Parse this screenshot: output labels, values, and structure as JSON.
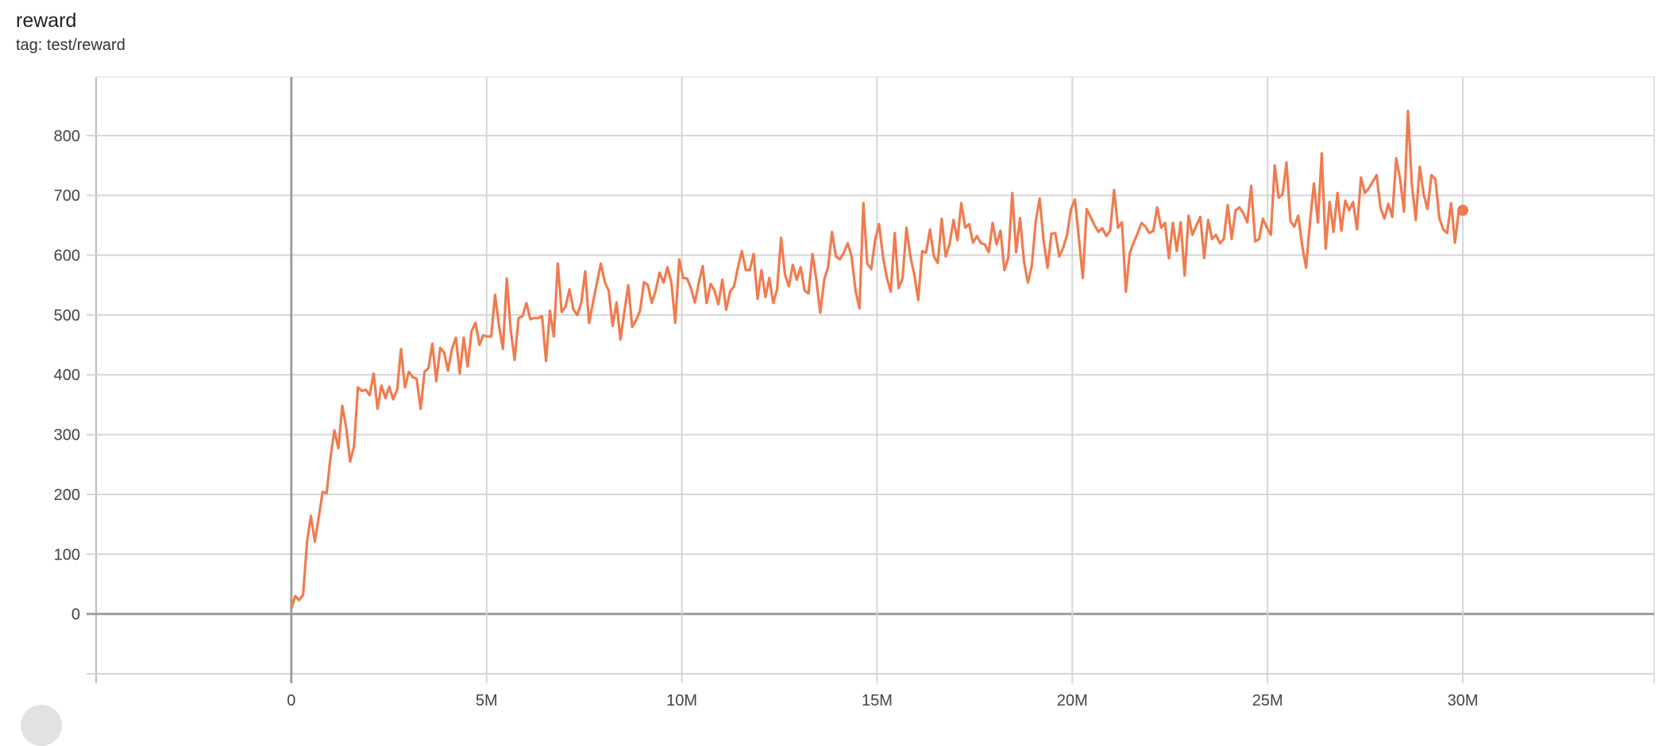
{
  "chart_data": {
    "type": "line",
    "title": "reward",
    "subtitle": "tag: test/reward",
    "xlabel": "",
    "ylabel": "",
    "xlim": [
      -5000000,
      34900000
    ],
    "ylim": [
      -100,
      898
    ],
    "grid": true,
    "x_ticks": [
      {
        "value": 0,
        "label": "0"
      },
      {
        "value": 5000000,
        "label": "5M"
      },
      {
        "value": 10000000,
        "label": "10M"
      },
      {
        "value": 15000000,
        "label": "15M"
      },
      {
        "value": 20000000,
        "label": "20M"
      },
      {
        "value": 25000000,
        "label": "25M"
      },
      {
        "value": 30000000,
        "label": "30M"
      }
    ],
    "y_ticks": [
      {
        "value": 0,
        "label": "0"
      },
      {
        "value": 100,
        "label": "100"
      },
      {
        "value": 200,
        "label": "200"
      },
      {
        "value": 300,
        "label": "300"
      },
      {
        "value": 400,
        "label": "400"
      },
      {
        "value": 500,
        "label": "500"
      },
      {
        "value": 600,
        "label": "600"
      },
      {
        "value": 700,
        "label": "700"
      },
      {
        "value": 800,
        "label": "800"
      }
    ],
    "series": [
      {
        "color": "#f07b4f",
        "x_first": 0,
        "x_last": 30000000,
        "values": [
          9,
          30,
          23,
          32,
          120,
          164,
          121,
          162,
          204,
          202,
          262,
          307,
          277,
          348,
          312,
          255,
          280,
          379,
          373,
          375,
          366,
          402,
          343,
          382,
          361,
          380,
          359,
          375,
          443,
          379,
          405,
          396,
          393,
          343,
          405,
          411,
          452,
          389,
          445,
          437,
          407,
          443,
          462,
          402,
          462,
          414,
          473,
          487,
          450,
          466,
          464,
          464,
          534,
          482,
          443,
          561,
          473,
          425,
          495,
          498,
          520,
          493,
          495,
          495,
          498,
          423,
          507,
          464,
          586,
          505,
          514,
          543,
          509,
          500,
          521,
          573,
          487,
          521,
          554,
          586,
          555,
          541,
          482,
          521,
          459,
          505,
          550,
          480,
          491,
          507,
          555,
          550,
          520,
          541,
          571,
          554,
          580,
          554,
          487,
          593,
          562,
          561,
          545,
          521,
          554,
          582,
          520,
          552,
          541,
          518,
          559,
          509,
          539,
          548,
          580,
          607,
          575,
          575,
          602,
          527,
          575,
          530,
          562,
          520,
          543,
          629,
          568,
          548,
          584,
          559,
          580,
          541,
          536,
          602,
          559,
          504,
          559,
          580,
          639,
          598,
          593,
          604,
          620,
          598,
          541,
          511,
          687,
          586,
          577,
          625,
          652,
          598,
          562,
          539,
          637,
          545,
          561,
          646,
          598,
          568,
          525,
          607,
          604,
          643,
          598,
          587,
          661,
          598,
          618,
          659,
          625,
          687,
          646,
          652,
          621,
          632,
          620,
          618,
          605,
          654,
          618,
          641,
          575,
          596,
          704,
          605,
          662,
          589,
          554,
          582,
          657,
          695,
          625,
          579,
          636,
          637,
          598,
          612,
          634,
          677,
          693,
          630,
          562,
          677,
          664,
          650,
          639,
          645,
          632,
          641,
          709,
          646,
          655,
          539,
          604,
          621,
          637,
          654,
          648,
          637,
          641,
          680,
          646,
          654,
          595,
          654,
          607,
          655,
          566,
          666,
          634,
          650,
          664,
          595,
          659,
          627,
          634,
          620,
          627,
          684,
          627,
          675,
          680,
          670,
          655,
          716,
          623,
          627,
          661,
          646,
          634,
          750,
          696,
          702,
          755,
          657,
          648,
          666,
          616,
          579,
          655,
          720,
          655,
          770,
          611,
          689,
          639,
          704,
          641,
          691,
          675,
          689,
          643,
          730,
          704,
          712,
          723,
          734,
          680,
          661,
          686,
          664,
          762,
          727,
          673,
          841,
          718,
          659,
          748,
          702,
          677,
          734,
          727,
          662,
          643,
          637,
          687,
          621,
          675,
          675
        ]
      }
    ]
  }
}
